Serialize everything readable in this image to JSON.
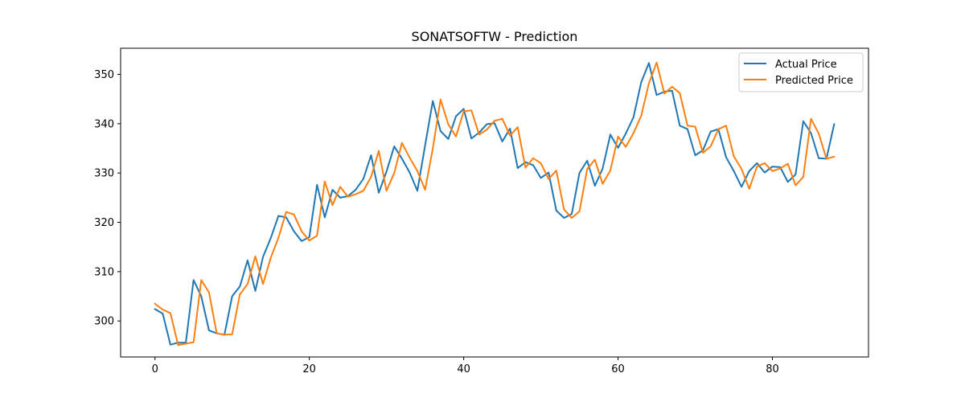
{
  "chart_data": {
    "type": "line",
    "title": "SONATSOFTW - Prediction",
    "xlabel": "",
    "ylabel": "",
    "xlim": [
      -4.45,
      92.45
    ],
    "ylim": [
      292.7,
      355.3
    ],
    "xticks": [
      0,
      20,
      40,
      60,
      80
    ],
    "yticks": [
      300,
      310,
      320,
      330,
      340,
      350
    ],
    "grid": false,
    "legend_position": "top-right",
    "series": [
      {
        "name": "Actual Price",
        "color": "#1f77b4",
        "values": [
          302.4,
          301.5,
          295.2,
          295.6,
          295.6,
          308.3,
          305.0,
          298.1,
          297.5,
          297.2,
          305.0,
          307.0,
          312.3,
          306.1,
          313.0,
          316.8,
          321.3,
          321.0,
          318.2,
          316.2,
          317.0,
          327.6,
          321.0,
          326.6,
          325.0,
          325.3,
          326.6,
          328.8,
          333.6,
          326.0,
          330.3,
          335.4,
          332.9,
          330.1,
          326.4,
          335.6,
          344.6,
          338.5,
          336.9,
          341.5,
          343.0,
          337.0,
          338.2,
          339.9,
          340.1,
          336.4,
          339.0,
          331.0,
          332.2,
          331.6,
          329.0,
          330.1,
          322.4,
          320.9,
          321.7,
          330.0,
          332.5,
          327.4,
          330.9,
          337.8,
          335.1,
          338.0,
          341.3,
          348.4,
          352.3,
          345.8,
          346.5,
          346.7,
          339.6,
          338.9,
          333.6,
          334.6,
          338.4,
          338.9,
          333.2,
          330.4,
          327.2,
          330.4,
          332.0,
          330.1,
          331.3,
          331.2,
          328.2,
          329.7,
          340.5,
          338.1,
          333.0,
          332.9,
          339.9
        ]
      },
      {
        "name": "Predicted Price",
        "color": "#ff7f0e",
        "values": [
          303.5,
          302.3,
          301.6,
          295.1,
          295.4,
          295.7,
          308.3,
          305.8,
          297.5,
          297.2,
          297.3,
          305.4,
          307.5,
          313.1,
          307.5,
          312.8,
          316.9,
          322.1,
          321.6,
          318.2,
          316.3,
          317.3,
          328.3,
          323.5,
          327.2,
          325.2,
          325.7,
          326.4,
          329.2,
          334.5,
          326.4,
          330.0,
          336.1,
          333.1,
          330.4,
          326.6,
          335.0,
          344.9,
          339.9,
          337.4,
          342.5,
          342.7,
          337.8,
          338.8,
          340.6,
          341.0,
          337.6,
          339.3,
          331.1,
          333.0,
          332.0,
          328.8,
          330.5,
          322.6,
          320.9,
          322.2,
          330.8,
          332.7,
          327.8,
          330.5,
          337.4,
          335.3,
          338.1,
          341.6,
          348.2,
          352.4,
          346.1,
          347.5,
          346.2,
          339.6,
          339.4,
          334.1,
          335.4,
          338.9,
          339.6,
          333.4,
          330.8,
          326.8,
          331.3,
          332.0,
          330.4,
          330.9,
          331.9,
          327.5,
          329.2,
          341.0,
          338.0,
          332.9,
          333.3
        ]
      }
    ]
  }
}
